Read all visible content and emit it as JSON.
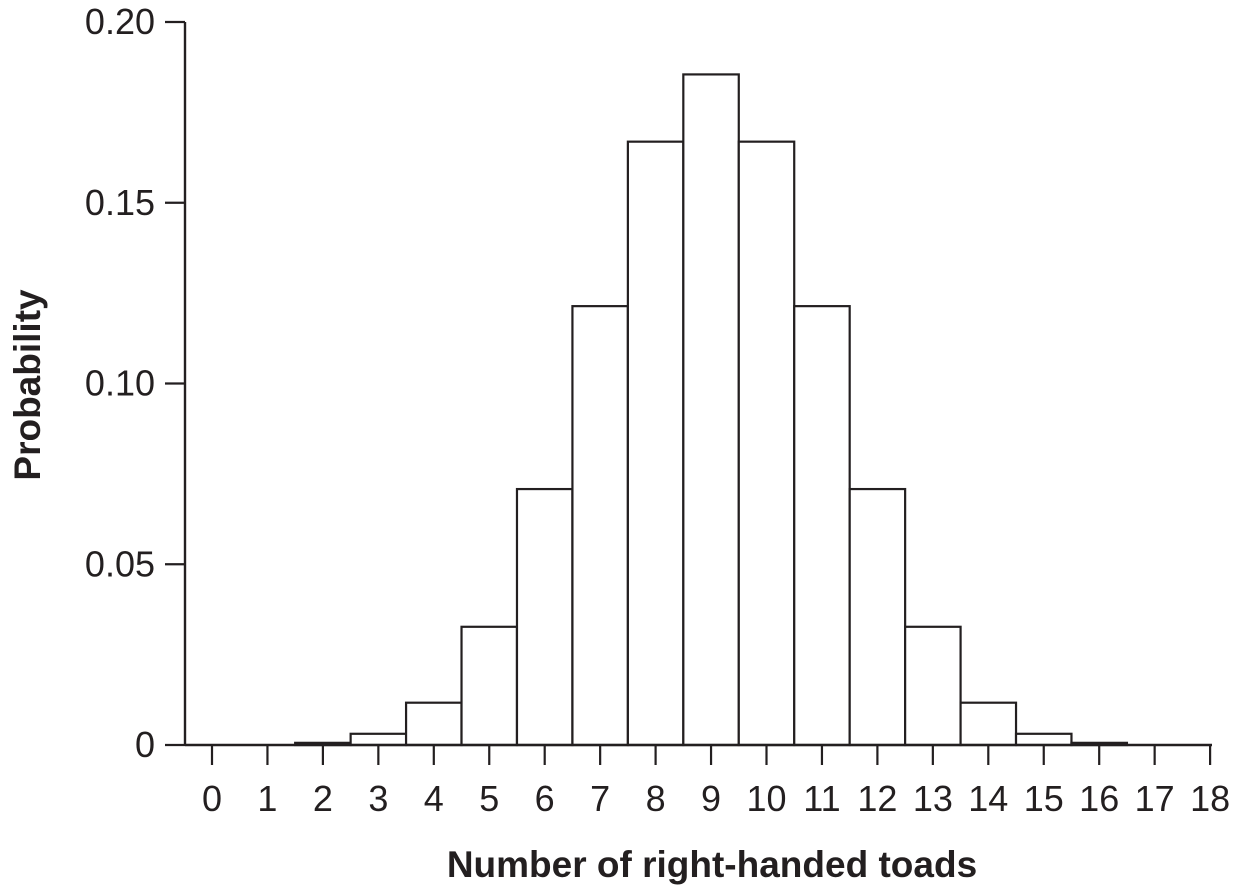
{
  "chart_data": {
    "type": "bar",
    "xlabel": "Number of right-handed toads",
    "ylabel": "Probability",
    "categories": [
      "0",
      "1",
      "2",
      "3",
      "4",
      "5",
      "6",
      "7",
      "8",
      "9",
      "10",
      "11",
      "12",
      "13",
      "14",
      "15",
      "16",
      "17",
      "18"
    ],
    "values": [
      0.0,
      0.0,
      0.0006,
      0.0031,
      0.0117,
      0.0327,
      0.0708,
      0.1214,
      0.1669,
      0.1855,
      0.1669,
      0.1214,
      0.0708,
      0.0327,
      0.0117,
      0.0031,
      0.0006,
      0.0,
      0.0
    ],
    "ylim": [
      0,
      0.2
    ],
    "yticks": [
      0,
      0.05,
      0.1,
      0.15,
      0.2
    ],
    "ytick_labels": [
      "0",
      "0.05",
      "0.10",
      "0.15",
      "0.20"
    ],
    "grid": false,
    "bar_fill": "#ffffff",
    "line_color": "#231f20"
  }
}
